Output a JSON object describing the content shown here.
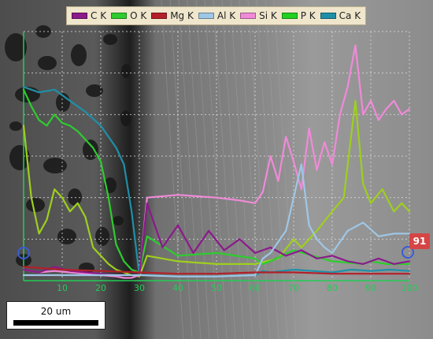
{
  "legend": [
    {
      "label": "C  K",
      "color": "#8b1a8b"
    },
    {
      "label": "O  K",
      "color": "#2ecc2e"
    },
    {
      "label": "Mg K",
      "color": "#b3202a"
    },
    {
      "label": "Al K",
      "color": "#9fc7e6"
    },
    {
      "label": "Si K",
      "color": "#f08ad8"
    },
    {
      "label": "P  K",
      "color": "#22d022"
    },
    {
      "label": "Ca K",
      "color": "#1f8fa8"
    }
  ],
  "scale_bar": {
    "label": "20 um"
  },
  "end_marker": {
    "label": "91"
  },
  "chart_data": {
    "type": "line",
    "title": "",
    "xlabel": "",
    "ylabel": "",
    "x_ticks": [
      "10",
      "20",
      "30",
      "40",
      "50",
      "60",
      "70",
      "80",
      "90",
      "100"
    ],
    "grid": true,
    "series": [
      {
        "name": "Ca K",
        "color": "#1f8fa8",
        "x": [
          0,
          4,
          8,
          12,
          16,
          20,
          24,
          26,
          28,
          30,
          32,
          40,
          50,
          60,
          62,
          64,
          70,
          80,
          85,
          90,
          95,
          100
        ],
        "y": [
          700,
          680,
          690,
          650,
          610,
          560,
          480,
          420,
          250,
          20,
          20,
          15,
          15,
          20,
          35,
          30,
          40,
          30,
          40,
          35,
          40,
          35
        ]
      },
      {
        "name": "P  K",
        "color": "#9ecf1e",
        "x": [
          0,
          2,
          4,
          6,
          8,
          10,
          12,
          14,
          16,
          18,
          20,
          22,
          24,
          26,
          28,
          30,
          32,
          40,
          50,
          60,
          66,
          70,
          72,
          76,
          80,
          83,
          86,
          88,
          90,
          93,
          96,
          98,
          100
        ],
        "y": [
          560,
          300,
          170,
          220,
          330,
          300,
          250,
          280,
          230,
          120,
          90,
          60,
          40,
          30,
          20,
          15,
          90,
          70,
          60,
          60,
          80,
          150,
          120,
          180,
          250,
          300,
          650,
          350,
          280,
          330,
          250,
          280,
          250
        ]
      },
      {
        "name": "O  K",
        "color": "#2ecc2e",
        "x": [
          0,
          2,
          4,
          6,
          8,
          10,
          12,
          14,
          16,
          18,
          20,
          22,
          24,
          26,
          28,
          30,
          32,
          40,
          50,
          60,
          62,
          64,
          70,
          80,
          88,
          90,
          94,
          96,
          98,
          100
        ],
        "y": [
          690,
          630,
          580,
          560,
          600,
          570,
          560,
          540,
          510,
          480,
          430,
          300,
          130,
          70,
          40,
          30,
          160,
          90,
          100,
          80,
          60,
          70,
          110,
          70,
          60,
          70,
          60,
          60,
          60,
          60
        ]
      },
      {
        "name": "Si K",
        "color": "#f08ad8",
        "x": [
          0,
          4,
          8,
          12,
          16,
          20,
          24,
          26,
          28,
          30,
          32,
          40,
          50,
          56,
          60,
          62,
          64,
          66,
          68,
          70,
          72,
          74,
          76,
          78,
          80,
          82,
          84,
          86,
          88,
          90,
          92,
          94,
          96,
          98,
          100
        ],
        "y": [
          40,
          30,
          35,
          30,
          25,
          20,
          15,
          10,
          10,
          20,
          300,
          310,
          300,
          290,
          280,
          320,
          450,
          360,
          520,
          430,
          330,
          550,
          400,
          500,
          420,
          600,
          700,
          850,
          600,
          650,
          580,
          620,
          650,
          600,
          620
        ]
      },
      {
        "name": "C  K",
        "color": "#8b1a8b",
        "x": [
          0,
          4,
          8,
          12,
          16,
          20,
          24,
          28,
          30,
          32,
          36,
          40,
          44,
          48,
          52,
          56,
          60,
          64,
          68,
          72,
          76,
          80,
          84,
          88,
          92,
          96,
          100
        ],
        "y": [
          40,
          30,
          50,
          35,
          30,
          25,
          20,
          20,
          20,
          280,
          120,
          200,
          100,
          180,
          110,
          150,
          100,
          120,
          90,
          110,
          80,
          90,
          70,
          60,
          80,
          60,
          70
        ]
      },
      {
        "name": "Al K",
        "color": "#9fc7e6",
        "x": [
          0,
          10,
          20,
          30,
          40,
          50,
          60,
          62,
          64,
          66,
          68,
          70,
          72,
          74,
          76,
          78,
          80,
          84,
          88,
          92,
          96,
          100
        ],
        "y": [
          20,
          20,
          20,
          20,
          15,
          15,
          20,
          80,
          100,
          140,
          180,
          300,
          420,
          200,
          150,
          120,
          100,
          180,
          210,
          160,
          170,
          170
        ]
      },
      {
        "name": "Mg K",
        "color": "#b3202a",
        "x": [
          0,
          10,
          20,
          30,
          40,
          50,
          60,
          70,
          80,
          90,
          100
        ],
        "y": [
          50,
          40,
          35,
          30,
          25,
          25,
          30,
          30,
          25,
          25,
          25
        ]
      }
    ]
  }
}
